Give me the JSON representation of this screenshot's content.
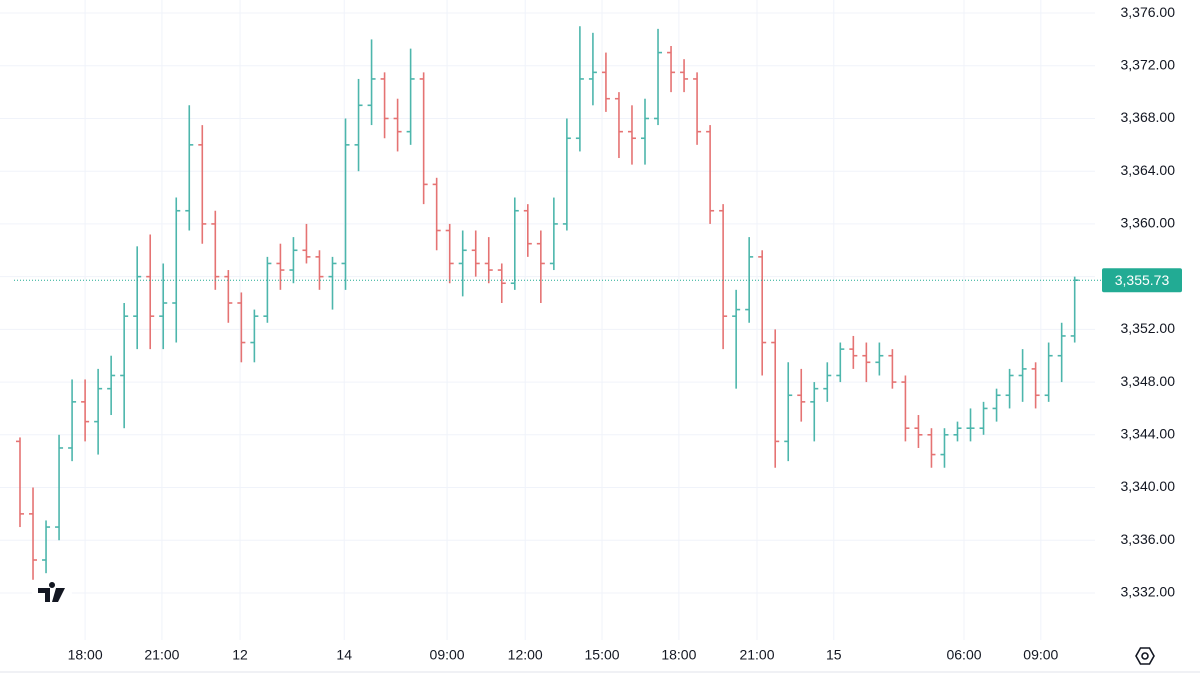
{
  "chart_data": {
    "type": "ohlc",
    "up_color": "#4db6ac",
    "down_color": "#e57373",
    "open": [
      3343.5,
      3338,
      3334.5,
      3337,
      3343,
      3346.5,
      3345,
      3347.5,
      3348.5,
      3353,
      3356,
      3353,
      3354,
      3361,
      3366,
      3360,
      3356,
      3354,
      3351,
      3353,
      3357,
      3356.5,
      3358,
      3357.5,
      3356,
      3357,
      3366,
      3369,
      3371,
      3368,
      3367,
      3371,
      3363,
      3359.5,
      3357,
      3358,
      3357,
      3356.5,
      3355.5,
      3361,
      3358.5,
      3357,
      3360,
      3366.5,
      3371,
      3371.5,
      3369.5,
      3367,
      3366.5,
      3368,
      3373,
      3371.5,
      3371,
      3367,
      3361,
      3353,
      3353.5,
      3357.5,
      3351,
      3343.5,
      3347,
      3346.5,
      3347.5,
      3348.5,
      3350.5,
      3350,
      3349.5,
      3350,
      3348,
      3344.5,
      3344,
      3342.5,
      3344,
      3344.5,
      3344.5,
      3346,
      3347,
      3348.5,
      3349,
      3347,
      3350,
      3351.5
    ],
    "high": [
      3343.8,
      3340,
      3337.5,
      3344,
      3348.2,
      3348.2,
      3349,
      3350,
      3354,
      3358.3,
      3359.2,
      3357,
      3362,
      3369,
      3367.5,
      3361,
      3356.5,
      3354.8,
      3353.5,
      3357.5,
      3358.5,
      3359,
      3360,
      3358,
      3357.5,
      3368,
      3371,
      3374,
      3371.5,
      3369.5,
      3373.3,
      3371.5,
      3363.5,
      3360,
      3359.5,
      3359.5,
      3359,
      3357,
      3362,
      3361.5,
      3359.5,
      3362,
      3368,
      3375,
      3374.5,
      3373,
      3370,
      3369,
      3369.5,
      3374.8,
      3373.5,
      3372.5,
      3371.5,
      3367.5,
      3361.5,
      3355,
      3359,
      3358,
      3352,
      3349.5,
      3349,
      3348,
      3349.5,
      3351,
      3351.5,
      3351,
      3351,
      3350.5,
      3348.5,
      3345.5,
      3344.5,
      3344.5,
      3345,
      3346,
      3346.5,
      3347.5,
      3349,
      3350.5,
      3349.5,
      3351,
      3352.5,
      3356
    ],
    "low": [
      3337,
      3333,
      3333.5,
      3336,
      3342,
      3343.5,
      3342.5,
      3345.5,
      3344.5,
      3350.5,
      3350.5,
      3350.5,
      3351,
      3359.5,
      3358.5,
      3355,
      3352.5,
      3349.5,
      3349.5,
      3352.5,
      3355,
      3355.5,
      3357,
      3355,
      3353.5,
      3355,
      3364,
      3367.5,
      3366.5,
      3365.5,
      3366,
      3361.5,
      3358,
      3355.5,
      3354.5,
      3356,
      3355.5,
      3354,
      3355,
      3357.5,
      3354,
      3356.5,
      3359.5,
      3365.5,
      3369,
      3368.5,
      3365,
      3364.5,
      3364.5,
      3367.5,
      3370,
      3370,
      3366,
      3360,
      3350.5,
      3347.5,
      3352.5,
      3348.5,
      3341.5,
      3342,
      3345,
      3343.5,
      3346.5,
      3348,
      3349,
      3348,
      3348.5,
      3347.5,
      3343.5,
      3343,
      3341.5,
      3341.5,
      3343.5,
      3343.5,
      3344,
      3345,
      3346,
      3346.5,
      3346,
      3346.5,
      3348,
      3351
    ],
    "close": [
      3338,
      3334.5,
      3337,
      3343,
      3346.5,
      3345,
      3347.5,
      3348.5,
      3353,
      3356,
      3353,
      3354,
      3361,
      3366,
      3360,
      3356,
      3354,
      3351,
      3353,
      3357,
      3356.5,
      3358,
      3357.5,
      3356,
      3357,
      3366,
      3369,
      3371,
      3368,
      3367,
      3371,
      3363,
      3359.5,
      3357,
      3358,
      3357,
      3356.5,
      3355.5,
      3361,
      3358.5,
      3357,
      3360,
      3366.5,
      3371,
      3371.5,
      3369.5,
      3367,
      3366.5,
      3368,
      3373,
      3371.5,
      3371,
      3367,
      3361,
      3353,
      3353.5,
      3357.5,
      3351,
      3343.5,
      3347,
      3346.5,
      3347.5,
      3348.5,
      3350.5,
      3350,
      3349.5,
      3350,
      3348,
      3344.5,
      3344,
      3342.5,
      3344,
      3344.5,
      3344.5,
      3346,
      3347,
      3348.5,
      3349,
      3347,
      3350,
      3351.5,
      3355.73
    ],
    "last_price": {
      "value": 3355.73,
      "label": "3,355.73"
    },
    "last_price_color": "#22ab94",
    "ylim": [
      3328.43,
      3376.99
    ],
    "yticks": [
      {
        "value": 3376,
        "label": "3,376.00"
      },
      {
        "value": 3372,
        "label": "3,372.00"
      },
      {
        "value": 3368,
        "label": "3,368.00"
      },
      {
        "value": 3364,
        "label": "3,364.00"
      },
      {
        "value": 3360,
        "label": "3,360.00"
      },
      {
        "value": 3356,
        "label": "3,356.00"
      },
      {
        "value": 3352,
        "label": "3,352.00"
      },
      {
        "value": 3348,
        "label": "3,348.00"
      },
      {
        "value": 3344,
        "label": "3,344.00"
      },
      {
        "value": 3340,
        "label": "3,340.00"
      },
      {
        "value": 3336,
        "label": "3,336.00"
      },
      {
        "value": 3332,
        "label": "3,332.00"
      }
    ],
    "xlim": [
      -1.536,
      82.56
    ],
    "xticks": [
      {
        "value": 5,
        "label": "18:00"
      },
      {
        "value": 10.9,
        "label": "21:00"
      },
      {
        "value": 16.9,
        "label": "12"
      },
      {
        "value": 24.9,
        "label": "14"
      },
      {
        "value": 32.8,
        "label": "09:00"
      },
      {
        "value": 38.8,
        "label": "12:00"
      },
      {
        "value": 44.7,
        "label": "15:00"
      },
      {
        "value": 50.6,
        "label": "18:00"
      },
      {
        "value": 56.6,
        "label": "21:00"
      },
      {
        "value": 62.5,
        "label": "15"
      },
      {
        "value": 72.5,
        "label": "06:00"
      },
      {
        "value": 78.4,
        "label": "09:00"
      }
    ],
    "grid": true
  }
}
